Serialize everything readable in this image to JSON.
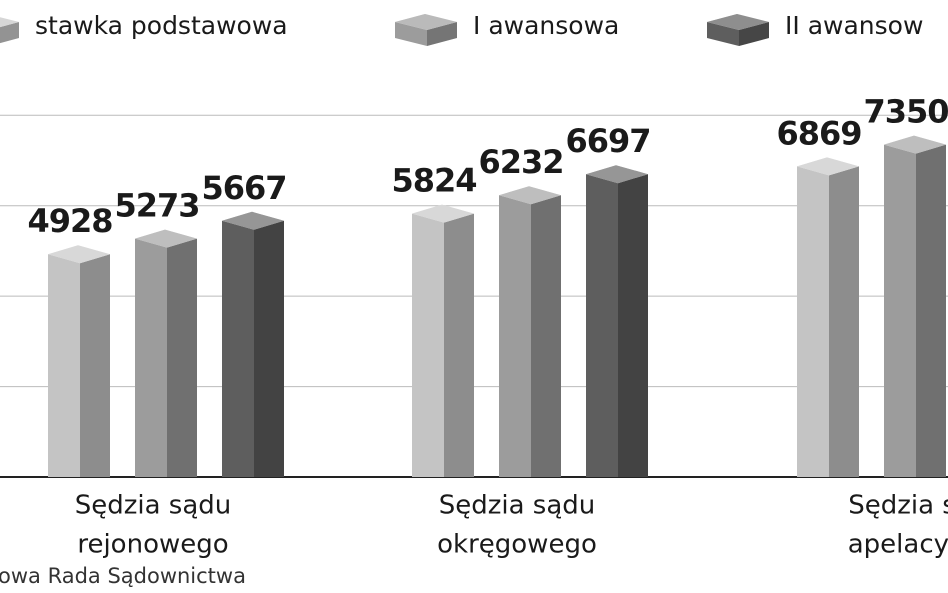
{
  "chart_data": {
    "type": "bar3d",
    "categories": [
      [
        "Sędzia sądu",
        "rejonowego"
      ],
      [
        "Sędzia sądu",
        "okręgowego"
      ],
      [
        "Sędzia s",
        "apelacyj"
      ]
    ],
    "series": [
      {
        "name": "stawka podstawowa",
        "color": "#c4c4c4",
        "values": [
          4928,
          5824,
          6869
        ]
      },
      {
        "name": "I awansowa",
        "color": "#9c9c9c",
        "values": [
          5273,
          6232,
          7350
        ]
      },
      {
        "name": "II awansow",
        "color": "#5e5e5e",
        "values": [
          5667,
          6697,
          null
        ]
      }
    ],
    "ylim": [
      0,
      10550
    ],
    "yticks": [
      0,
      2000,
      4000,
      6000,
      8000
    ],
    "grid": true,
    "source": "owa Rada Sądownictwa"
  }
}
